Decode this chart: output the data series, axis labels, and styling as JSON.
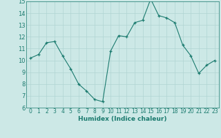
{
  "x": [
    0,
    1,
    2,
    3,
    4,
    5,
    6,
    7,
    8,
    9,
    10,
    11,
    12,
    13,
    14,
    15,
    16,
    17,
    18,
    19,
    20,
    21,
    22,
    23
  ],
  "y": [
    10.2,
    10.5,
    11.5,
    11.6,
    10.4,
    9.3,
    8.0,
    7.4,
    6.7,
    6.5,
    10.8,
    12.1,
    12.0,
    13.2,
    13.4,
    15.2,
    13.8,
    13.6,
    13.2,
    11.3,
    10.4,
    8.9,
    9.6,
    10.0
  ],
  "xlabel": "Humidex (Indice chaleur)",
  "ylim": [
    6,
    15
  ],
  "xlim_min": -0.5,
  "xlim_max": 23.5,
  "yticks": [
    6,
    7,
    8,
    9,
    10,
    11,
    12,
    13,
    14,
    15
  ],
  "xticks": [
    0,
    1,
    2,
    3,
    4,
    5,
    6,
    7,
    8,
    9,
    10,
    11,
    12,
    13,
    14,
    15,
    16,
    17,
    18,
    19,
    20,
    21,
    22,
    23
  ],
  "line_color": "#1a7a6e",
  "marker_color": "#1a7a6e",
  "bg_color": "#cce8e6",
  "grid_color": "#b0d4d2",
  "tick_color": "#1a7a6e",
  "label_fontsize": 6.0,
  "tick_fontsize": 5.5,
  "xlabel_fontsize": 6.5
}
